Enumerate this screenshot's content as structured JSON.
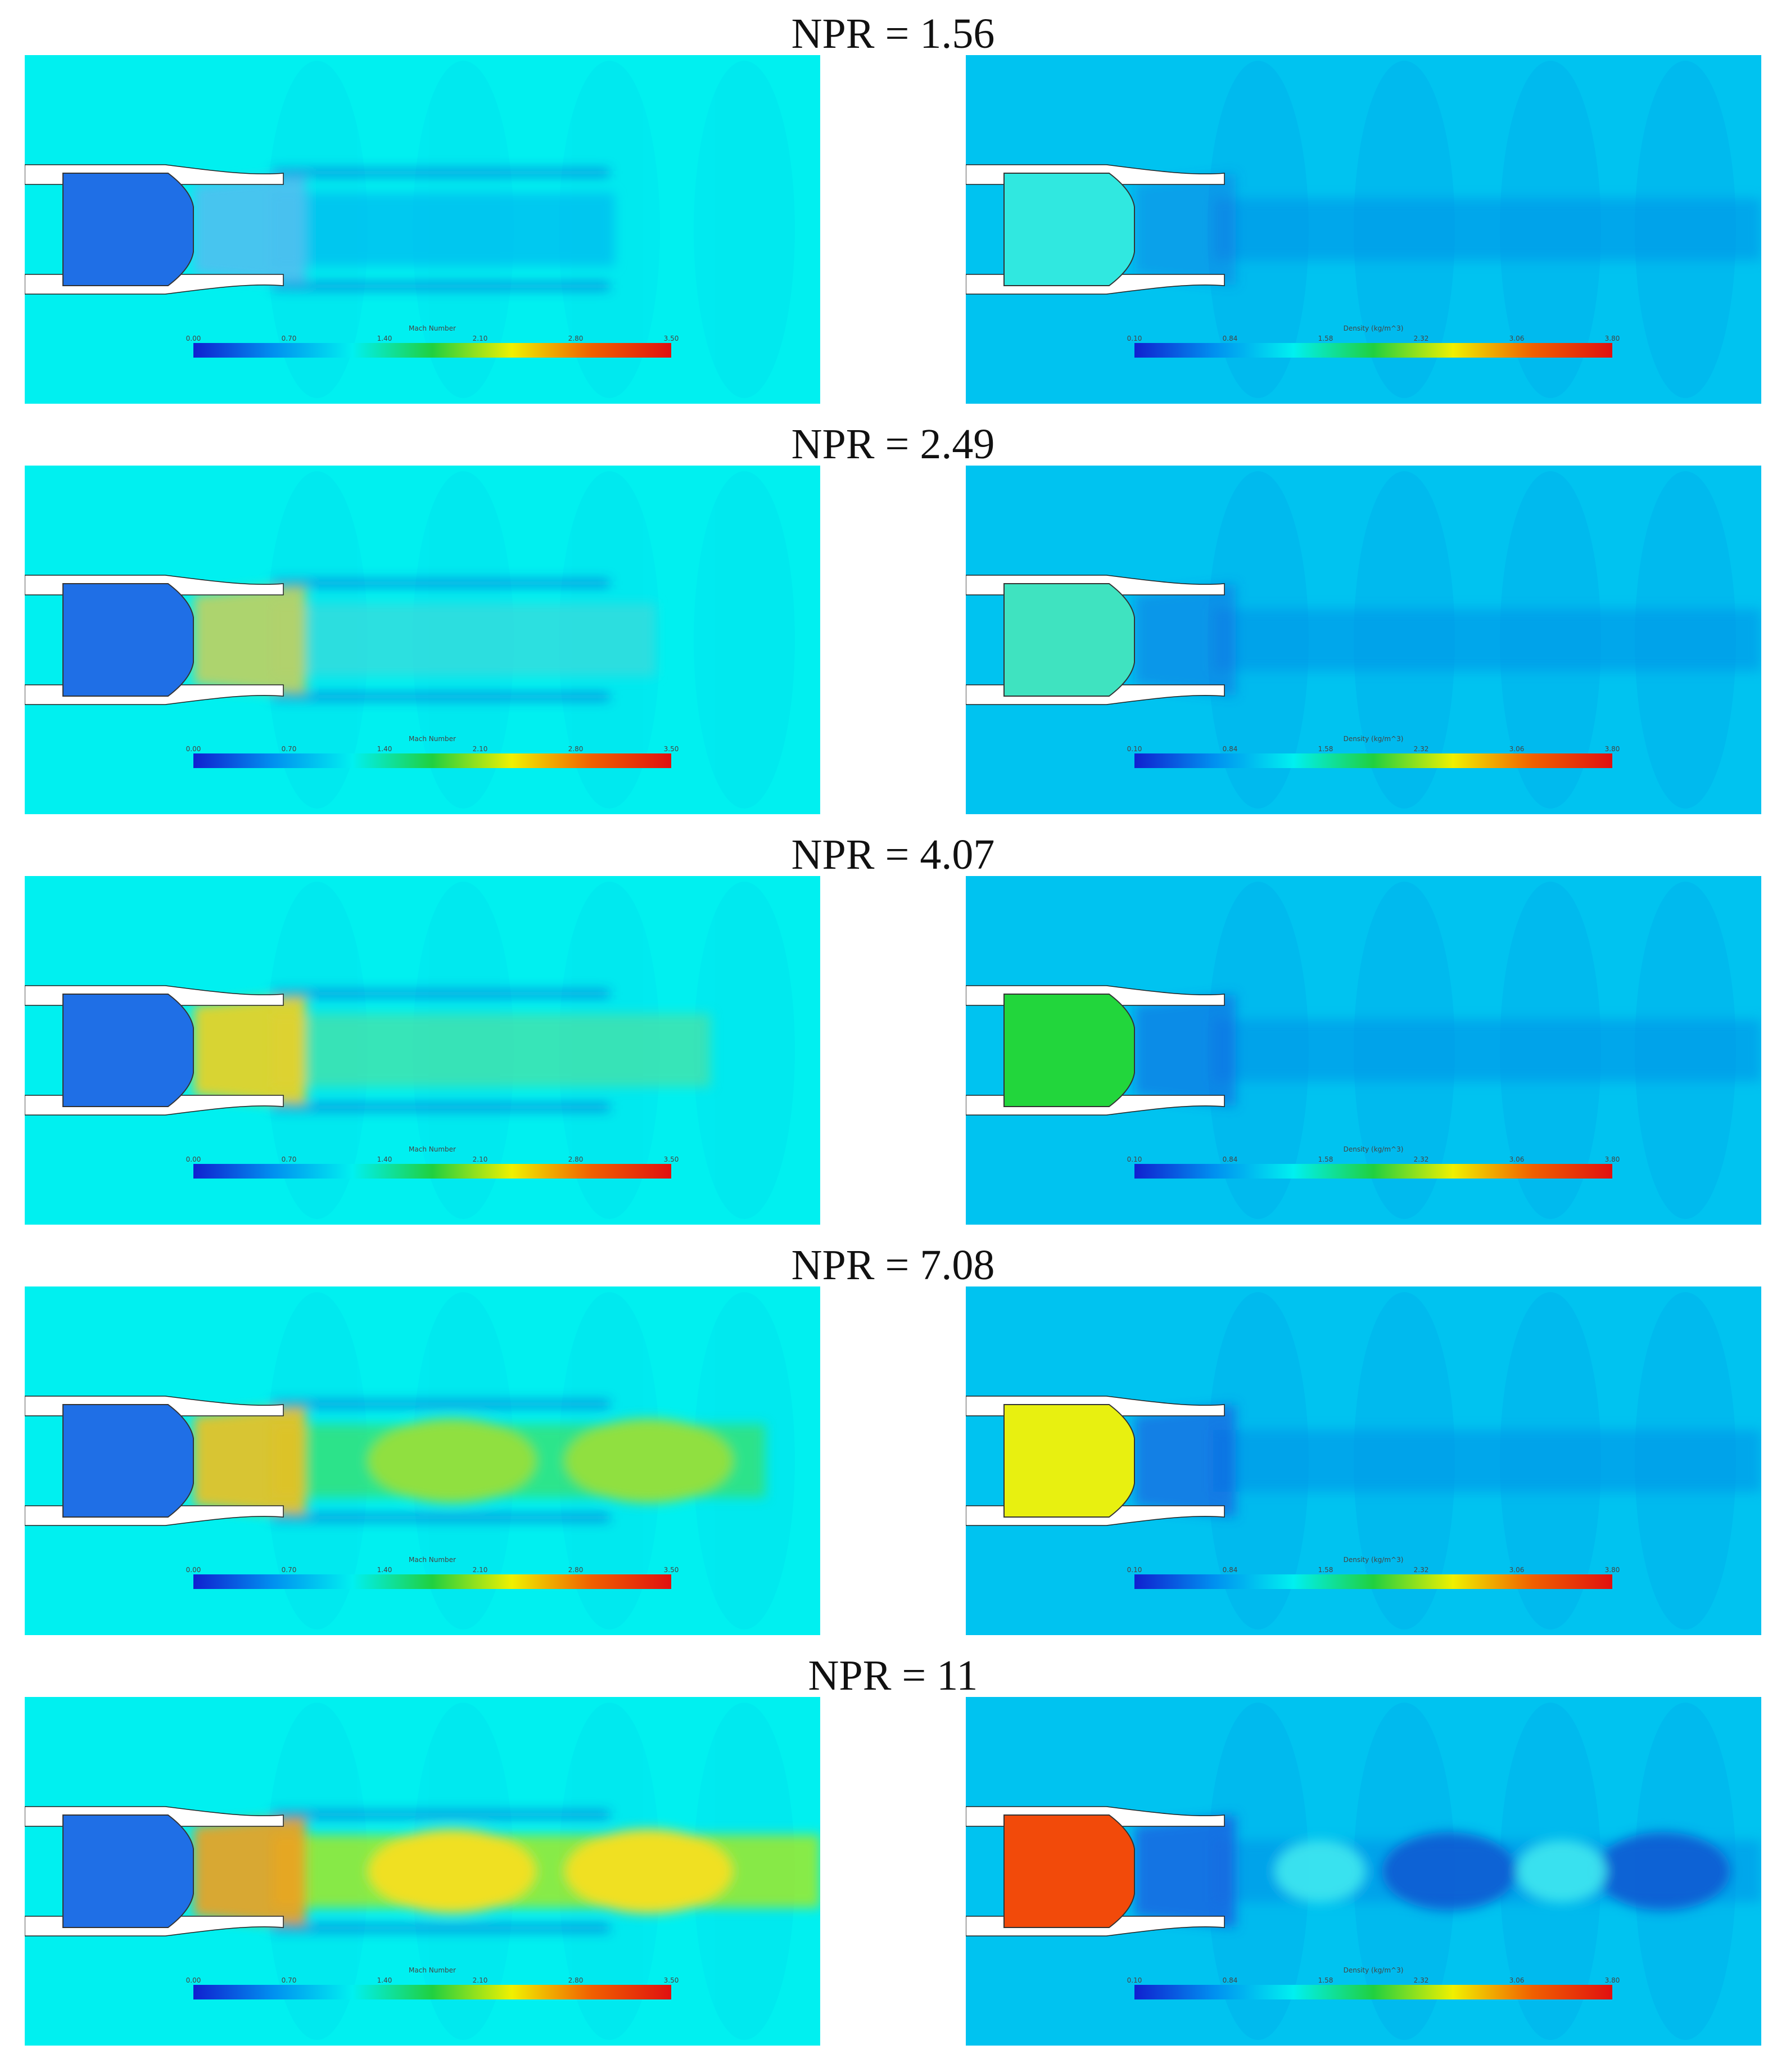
{
  "figure": {
    "rows": [
      {
        "npr_label": "NPR = 1.56"
      },
      {
        "npr_label": "NPR = 2.49"
      },
      {
        "npr_label": "NPR = 4.07"
      },
      {
        "npr_label": "NPR = 7.08"
      },
      {
        "npr_label": "NPR = 11"
      }
    ],
    "mach_colorbar": {
      "title": "Mach Number",
      "ticks": [
        "0.00",
        "0.70",
        "1.40",
        "2.10",
        "2.80",
        "3.50"
      ]
    },
    "density_colorbar": {
      "title": "Density (kg/m^3)",
      "ticks": [
        "0.10",
        "0.84",
        "1.58",
        "2.32",
        "3.06",
        "3.80"
      ]
    },
    "colors": {
      "mach_background": "#00f0f0",
      "density_background": "#00c3f0",
      "chamber_mach": "#1f6fe6",
      "chamber_density": [
        "#30e8e0",
        "#3fe3c0",
        "#22d63c",
        "#e8f010",
        "#f24a0a"
      ],
      "colormap": [
        "#1020d0",
        "#0090f0",
        "#00f0f0",
        "#20d040",
        "#f0f000",
        "#f06000",
        "#e01010"
      ]
    }
  }
}
